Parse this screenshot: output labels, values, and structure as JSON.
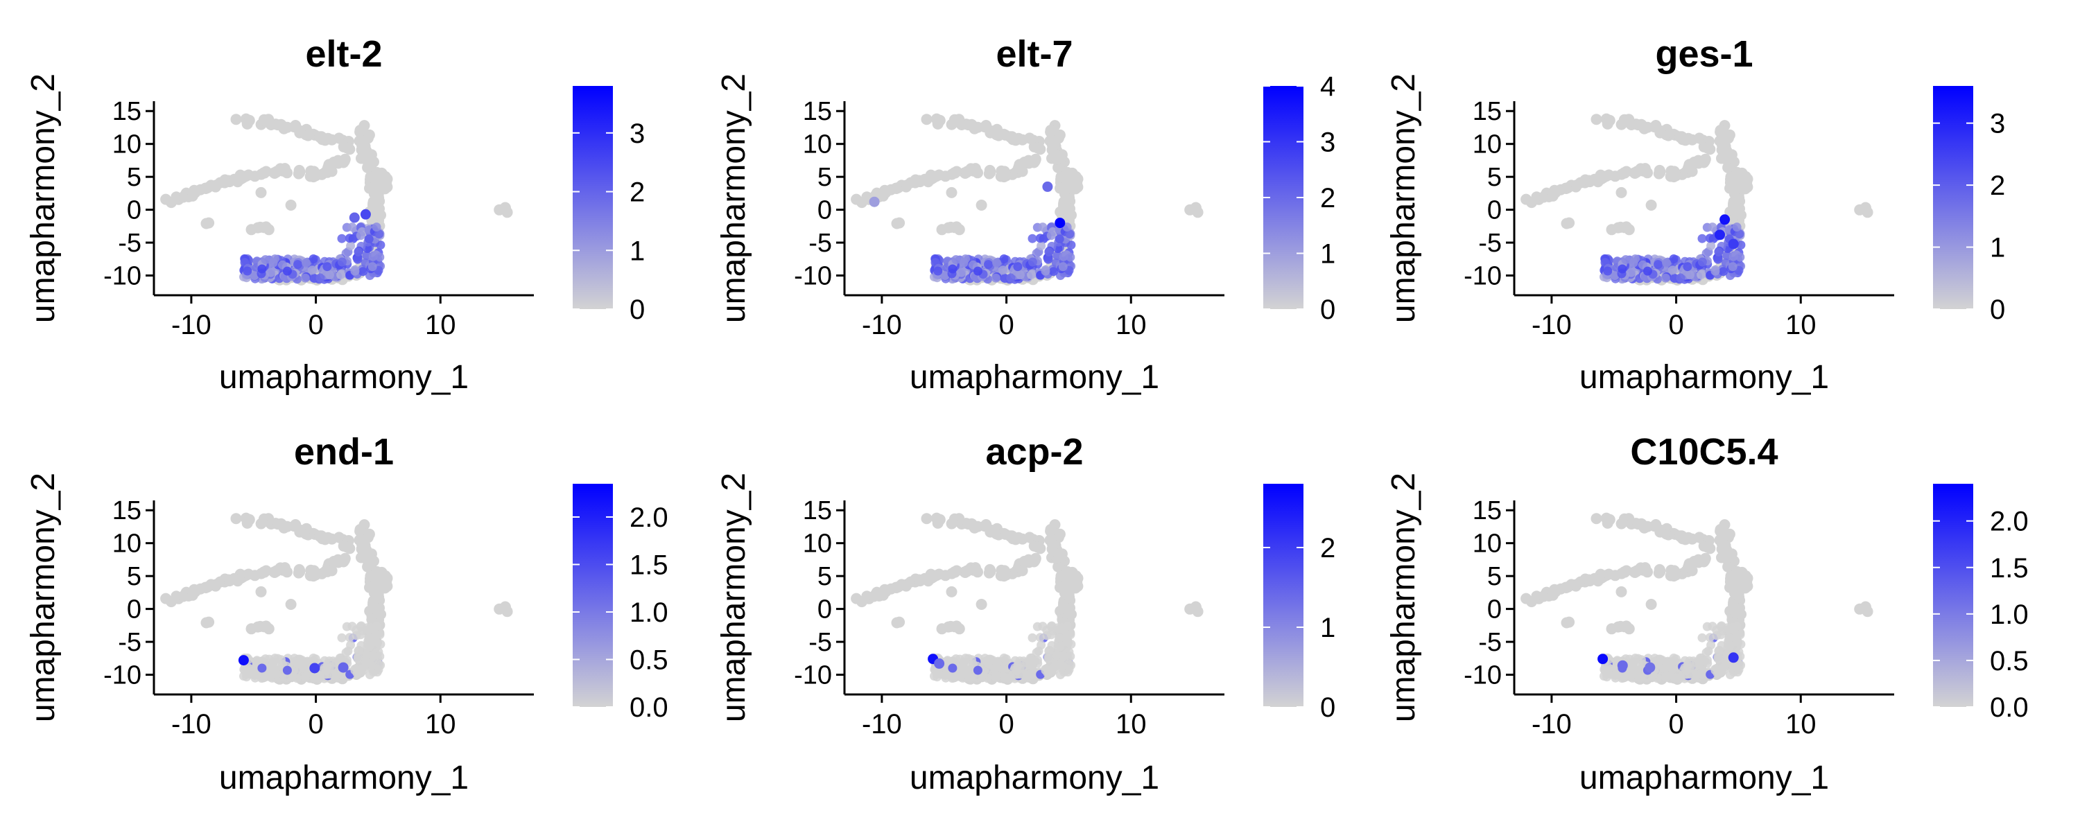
{
  "palette": {
    "low": "#d3d3d3",
    "high": "#0000ff",
    "axis": "#000000",
    "background": "#ffffff"
  },
  "chart_data": [
    {
      "type": "scatter",
      "title": "elt-2",
      "xlabel": "umapharmony_1",
      "ylabel": "umapharmony_2",
      "xlim": [
        -13,
        17.5
      ],
      "ylim": [
        -13,
        16.5
      ],
      "xticks": [
        "-10",
        "0",
        "10"
      ],
      "yticks": [
        "15",
        "10",
        "5",
        "0",
        "-5",
        "-10"
      ],
      "legend": {
        "position": "right",
        "range": [
          0,
          3.8
        ],
        "ticks": [
          "0",
          "1",
          "2",
          "3"
        ]
      },
      "expression": "strong",
      "highlights": [
        {
          "x": 4.0,
          "y": -0.7,
          "v": 2.5
        },
        {
          "x": 3.1,
          "y": -1.2,
          "v": 2.0
        }
      ]
    },
    {
      "type": "scatter",
      "title": "elt-7",
      "xlabel": "umapharmony_1",
      "ylabel": "umapharmony_2",
      "xlim": [
        -13,
        17.5
      ],
      "ylim": [
        -13,
        16.5
      ],
      "xticks": [
        "-10",
        "0",
        "10"
      ],
      "yticks": [
        "15",
        "10",
        "5",
        "0",
        "-5",
        "-10"
      ],
      "legend": {
        "position": "right",
        "range": [
          0,
          4
        ],
        "ticks": [
          "0",
          "1",
          "2",
          "3",
          "4"
        ]
      },
      "expression": "strong",
      "highlights": [
        {
          "x": 4.3,
          "y": -2.0,
          "v": 4.0
        },
        {
          "x": 3.3,
          "y": 3.5,
          "v": 2.0
        },
        {
          "x": -10.6,
          "y": 1.2,
          "v": 1.0
        }
      ]
    },
    {
      "type": "scatter",
      "title": "ges-1",
      "xlabel": "umapharmony_1",
      "ylabel": "umapharmony_2",
      "xlim": [
        -13,
        17.5
      ],
      "ylim": [
        -13,
        16.5
      ],
      "xticks": [
        "-10",
        "0",
        "10"
      ],
      "yticks": [
        "15",
        "10",
        "5",
        "0",
        "-5",
        "-10"
      ],
      "legend": {
        "position": "right",
        "range": [
          0,
          3.6
        ],
        "ticks": [
          "0",
          "1",
          "2",
          "3"
        ]
      },
      "expression": "strong",
      "highlights": [
        {
          "x": 3.9,
          "y": -1.5,
          "v": 3.3
        },
        {
          "x": 3.5,
          "y": -3.8,
          "v": 3.0
        },
        {
          "x": 4.6,
          "y": -5.2,
          "v": 2.6
        }
      ]
    },
    {
      "type": "scatter",
      "title": "end-1",
      "xlabel": "umapharmony_1",
      "ylabel": "umapharmony_2",
      "xlim": [
        -13,
        17.5
      ],
      "ylim": [
        -13,
        16.5
      ],
      "xticks": [
        "-10",
        "0",
        "10"
      ],
      "yticks": [
        "15",
        "10",
        "5",
        "0",
        "-5",
        "-10"
      ],
      "legend": {
        "position": "right",
        "range": [
          0,
          2.35
        ],
        "ticks": [
          "0.0",
          "0.5",
          "1.0",
          "1.5",
          "2.0"
        ]
      },
      "expression": "sparse",
      "highlights": [
        {
          "x": -5.8,
          "y": -7.8,
          "v": 2.2
        },
        {
          "x": -0.1,
          "y": -9.0,
          "v": 1.6
        },
        {
          "x": 2.2,
          "y": -8.9,
          "v": 1.2
        }
      ]
    },
    {
      "type": "scatter",
      "title": "acp-2",
      "xlabel": "umapharmony_1",
      "ylabel": "umapharmony_2",
      "xlim": [
        -13,
        17.5
      ],
      "ylim": [
        -13,
        16.5
      ],
      "xticks": [
        "-10",
        "0",
        "10"
      ],
      "yticks": [
        "15",
        "10",
        "5",
        "0",
        "-5",
        "-10"
      ],
      "legend": {
        "position": "right",
        "range": [
          0,
          2.8
        ],
        "ticks": [
          "0",
          "1",
          "2"
        ]
      },
      "expression": "sparse",
      "highlights": [
        {
          "x": -5.9,
          "y": -7.6,
          "v": 2.6
        },
        {
          "x": -5.4,
          "y": -8.3,
          "v": 1.4
        }
      ]
    },
    {
      "type": "scatter",
      "title": "C10C5.4",
      "xlabel": "umapharmony_1",
      "ylabel": "umapharmony_2",
      "xlim": [
        -13,
        17.5
      ],
      "ylim": [
        -13,
        16.5
      ],
      "xticks": [
        "-10",
        "0",
        "10"
      ],
      "yticks": [
        "15",
        "10",
        "5",
        "0",
        "-5",
        "-10"
      ],
      "legend": {
        "position": "right",
        "range": [
          0,
          2.4
        ],
        "ticks": [
          "0.0",
          "0.5",
          "1.0",
          "1.5",
          "2.0"
        ]
      },
      "expression": "sparse",
      "highlights": [
        {
          "x": -5.9,
          "y": -7.6,
          "v": 2.3
        },
        {
          "x": -4.3,
          "y": -8.6,
          "v": 1.2
        },
        {
          "x": -2.1,
          "y": -8.9,
          "v": 1.1
        },
        {
          "x": 4.6,
          "y": -7.4,
          "v": 1.8
        }
      ]
    }
  ]
}
